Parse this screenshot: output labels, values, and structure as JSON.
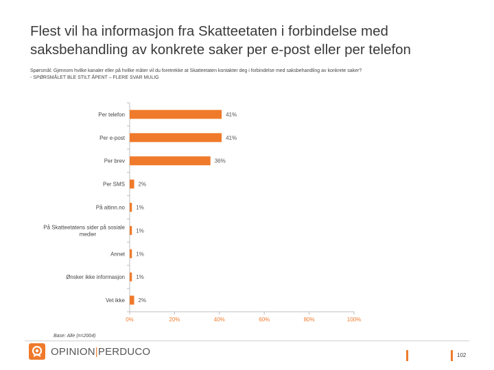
{
  "title_lines": [
    "Flest vil ha informasjon fra Skatteetaten i forbindelse med",
    "saksbehandling av konkrete saker per e-post eller per telefon"
  ],
  "question_lines": [
    "Spørsmål: Gjennom  hvilke kanaler eller på hvilke måter vil du foretrekke at Skatteetaten kontakter deg i forbindelse med saksbehandling av konkrete saker?",
    "- SPØRSMÅLET BLE STILT ÅPENT – FLERE SVAR MULIG"
  ],
  "base_text": "Base: Alle (n=2004)",
  "brand": {
    "name_left": "OPINION",
    "separator": "|",
    "name_right": "PERDUCO",
    "accent_color": "#ef7a2b"
  },
  "page_number": "102",
  "chart_data": {
    "type": "bar",
    "orientation": "horizontal",
    "categories": [
      "Per telefon",
      "Per e-post",
      "Per brev",
      "Per SMS",
      "På altinn.no",
      "På Skatteetatens sider på sosiale medier",
      "Annet",
      "Ønsker ikke informasjon",
      "Vet ikke"
    ],
    "category_label_lines": [
      [
        "Per telefon"
      ],
      [
        "Per e-post"
      ],
      [
        "Per brev"
      ],
      [
        "Per SMS"
      ],
      [
        "På altinn.no"
      ],
      [
        "På Skatteetatens sider på sosiale",
        "medier"
      ],
      [
        "Annet"
      ],
      [
        "Ønsker ikke informasjon"
      ],
      [
        "Vet ikke"
      ]
    ],
    "values": [
      41,
      41,
      36,
      2,
      1,
      1,
      1,
      1,
      2
    ],
    "value_labels": [
      "41%",
      "41%",
      "36%",
      "2%",
      "1%",
      "1%",
      "1%",
      "1%",
      "2%"
    ],
    "x_ticks": [
      0,
      20,
      40,
      60,
      80,
      100
    ],
    "x_tick_labels": [
      "0%",
      "20%",
      "40%",
      "60%",
      "80%",
      "100%"
    ],
    "xlim": [
      0,
      100
    ],
    "bar_color": "#ef7a2b",
    "tick_color": "#ef7a2b",
    "grid": false,
    "legend": "none"
  }
}
